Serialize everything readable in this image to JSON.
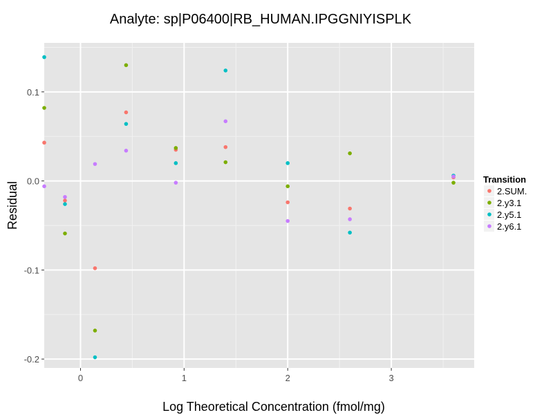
{
  "chart_data": {
    "type": "scatter",
    "title": "Analyte: sp|P06400|RB_HUMAN.IPGGNIYISPLK",
    "xlabel": "Log Theoretical Concentration (fmol/mg)",
    "ylabel": "Residual",
    "xlim": [
      -0.35,
      3.8
    ],
    "ylim": [
      -0.21,
      0.155
    ],
    "x_ticks": [
      0,
      1,
      2,
      3
    ],
    "x_tick_labels": [
      "0",
      "1",
      "2",
      "3"
    ],
    "y_ticks": [
      -0.2,
      -0.1,
      0.0,
      0.1
    ],
    "y_tick_labels": [
      "-0.2",
      "-0.1",
      "0.0",
      "0.1"
    ],
    "grid": true,
    "legend": {
      "title": "Transition",
      "position": "right"
    },
    "series": [
      {
        "name": "2.SUM.",
        "color": "#F8766D",
        "points": [
          {
            "x": -0.35,
            "y": 0.043
          },
          {
            "x": -0.15,
            "y": -0.022
          },
          {
            "x": 0.14,
            "y": -0.098
          },
          {
            "x": 0.44,
            "y": 0.077
          },
          {
            "x": 0.92,
            "y": 0.035
          },
          {
            "x": 1.4,
            "y": 0.038
          },
          {
            "x": 2.0,
            "y": -0.024
          },
          {
            "x": 2.6,
            "y": -0.031
          },
          {
            "x": 3.6,
            "y": 0.004
          }
        ]
      },
      {
        "name": "2.y3.1",
        "color": "#7CAE00",
        "points": [
          {
            "x": -0.35,
            "y": 0.082
          },
          {
            "x": -0.15,
            "y": -0.059
          },
          {
            "x": 0.14,
            "y": -0.168
          },
          {
            "x": 0.44,
            "y": 0.13
          },
          {
            "x": 0.92,
            "y": 0.037
          },
          {
            "x": 1.4,
            "y": 0.021
          },
          {
            "x": 2.0,
            "y": -0.006
          },
          {
            "x": 2.6,
            "y": 0.031
          },
          {
            "x": 3.6,
            "y": -0.002
          }
        ]
      },
      {
        "name": "2.y5.1",
        "color": "#00BFC4",
        "points": [
          {
            "x": -0.35,
            "y": 0.139
          },
          {
            "x": -0.15,
            "y": -0.026
          },
          {
            "x": 0.14,
            "y": -0.198
          },
          {
            "x": 0.44,
            "y": 0.064
          },
          {
            "x": 0.92,
            "y": 0.02
          },
          {
            "x": 1.4,
            "y": 0.124
          },
          {
            "x": 2.0,
            "y": 0.02
          },
          {
            "x": 2.6,
            "y": -0.058
          },
          {
            "x": 3.6,
            "y": 0.006
          }
        ]
      },
      {
        "name": "2.y6.1",
        "color": "#C77CFF",
        "points": [
          {
            "x": -0.35,
            "y": -0.006
          },
          {
            "x": -0.15,
            "y": -0.018
          },
          {
            "x": 0.14,
            "y": 0.019
          },
          {
            "x": 0.44,
            "y": 0.034
          },
          {
            "x": 0.92,
            "y": -0.002
          },
          {
            "x": 1.4,
            "y": 0.067
          },
          {
            "x": 2.0,
            "y": -0.045
          },
          {
            "x": 2.6,
            "y": -0.043
          },
          {
            "x": 3.6,
            "y": 0.005
          }
        ]
      }
    ]
  }
}
